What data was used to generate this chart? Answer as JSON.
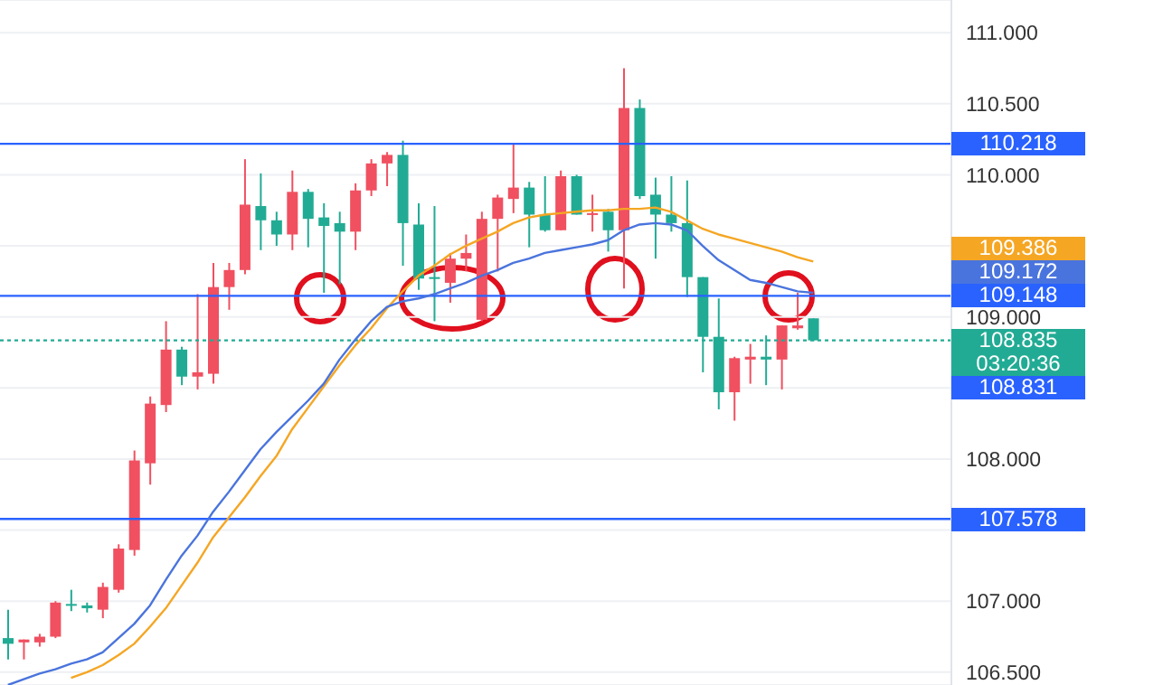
{
  "chart_data": {
    "type": "candlestick",
    "categories": [
      null,
      null,
      null,
      null,
      null,
      null,
      null,
      null,
      null,
      null,
      null,
      null,
      null,
      null,
      null,
      null,
      null,
      null,
      null,
      null,
      null,
      null,
      null,
      null,
      null,
      null,
      null,
      null,
      null,
      null,
      null,
      null,
      null,
      null,
      null,
      null,
      null,
      null,
      null,
      null,
      null,
      null,
      null,
      null,
      null,
      null,
      null,
      null,
      null,
      null,
      null,
      null
    ],
    "ylim": [
      106.41,
      111.23
    ],
    "tick_labels": "y",
    "grid": "y",
    "yticks": [
      {
        "value": 106.5,
        "label": "106.500"
      },
      {
        "value": 107,
        "label": "107.000"
      },
      {
        "value": 107.5,
        "label": null
      },
      {
        "value": 108,
        "label": "108.000"
      },
      {
        "value": 108.5,
        "label": null
      },
      {
        "value": 109,
        "label": "109.000"
      },
      {
        "value": 109.5,
        "label": null
      },
      {
        "value": 110,
        "label": "110.000"
      },
      {
        "value": 110.5,
        "label": "110.500"
      },
      {
        "value": 111,
        "label": "111.000"
      }
    ],
    "series": [
      {
        "type": "line",
        "color": "#f5a623",
        "values": [
          null,
          null,
          null,
          null,
          106.46,
          106.5,
          106.55,
          106.62,
          106.7,
          106.82,
          106.95,
          107.11,
          107.27,
          107.45,
          107.59,
          107.73,
          107.88,
          108.02,
          108.21,
          108.36,
          108.51,
          108.66,
          108.8,
          108.92,
          109.06,
          109.18,
          109.29,
          109.36,
          109.44,
          109.5,
          109.55,
          109.6,
          109.66,
          109.7,
          109.72,
          109.73,
          109.74,
          109.75,
          109.75,
          109.76,
          109.76,
          109.77,
          109.74,
          109.68,
          109.62,
          109.58,
          109.55,
          109.52,
          109.49,
          109.46,
          109.42,
          109.39
        ]
      },
      {
        "type": "line",
        "color": "#4a74dd",
        "values": [
          106.41,
          106.45,
          106.49,
          106.52,
          106.56,
          106.59,
          106.64,
          106.74,
          106.84,
          106.97,
          107.15,
          107.32,
          107.46,
          107.63,
          107.77,
          107.92,
          108.07,
          108.19,
          108.3,
          108.41,
          108.53,
          108.7,
          108.84,
          108.97,
          109.07,
          109.11,
          109.13,
          109.16,
          109.2,
          109.24,
          109.29,
          109.33,
          109.38,
          109.41,
          109.45,
          109.47,
          109.49,
          109.51,
          109.54,
          109.61,
          109.65,
          109.66,
          109.65,
          109.61,
          109.5,
          109.4,
          109.33,
          109.26,
          109.24,
          109.21,
          109.18,
          109.17
        ]
      },
      {
        "colors": [
          "#22ab94",
          "#f05060",
          "#f05060",
          "#f05060",
          "#22ab94",
          "#22ab94",
          "#f05060",
          "#f05060",
          "#f05060",
          "#f05060",
          "#f05060",
          "#22ab94",
          "#f05060",
          "#f05060",
          "#f05060",
          "#f05060",
          "#22ab94",
          "#22ab94",
          "#f05060",
          "#22ab94",
          "#22ab94",
          "#22ab94",
          "#f05060",
          "#f05060",
          "#f05060",
          "#22ab94",
          "#22ab94",
          "#22ab94",
          "#f05060",
          "#f05060",
          "#f05060",
          "#f05060",
          "#f05060",
          "#22ab94",
          "#22ab94",
          "#f05060",
          "#22ab94",
          "#f05060",
          "#22ab94",
          "#f05060",
          "#22ab94",
          "#22ab94",
          "#22ab94",
          "#22ab94",
          "#22ab94",
          "#22ab94",
          "#f05060",
          "#f05060",
          "#22ab94",
          "#f05060",
          "#f05060",
          "#22ab94"
        ],
        "ohlc": [
          [
            106.74,
            106.94,
            106.59,
            106.7
          ],
          [
            106.71,
            106.73,
            106.59,
            106.73
          ],
          [
            106.71,
            106.77,
            106.68,
            106.75
          ],
          [
            106.75,
            107.0,
            106.74,
            106.99
          ],
          [
            106.98,
            107.08,
            106.93,
            106.97
          ],
          [
            106.97,
            106.99,
            106.92,
            106.95
          ],
          [
            106.94,
            107.13,
            106.88,
            107.1
          ],
          [
            107.08,
            107.4,
            107.06,
            107.37
          ],
          [
            107.36,
            108.06,
            107.32,
            107.99
          ],
          [
            107.97,
            108.44,
            107.82,
            108.39
          ],
          [
            108.38,
            108.97,
            108.33,
            108.77
          ],
          [
            108.77,
            108.79,
            108.52,
            108.58
          ],
          [
            108.58,
            109.16,
            108.49,
            108.61
          ],
          [
            108.6,
            109.38,
            108.53,
            109.21
          ],
          [
            109.21,
            109.38,
            109.05,
            109.33
          ],
          [
            109.33,
            110.11,
            109.3,
            109.79
          ],
          [
            109.78,
            110.01,
            109.47,
            109.68
          ],
          [
            109.68,
            109.74,
            109.5,
            109.58
          ],
          [
            109.58,
            110.03,
            109.47,
            109.88
          ],
          [
            109.88,
            109.9,
            109.49,
            109.69
          ],
          [
            109.7,
            109.8,
            109.17,
            109.64
          ],
          [
            109.66,
            109.74,
            109.23,
            109.6
          ],
          [
            109.6,
            109.94,
            109.47,
            109.89
          ],
          [
            109.89,
            110.11,
            109.85,
            110.08
          ],
          [
            110.08,
            110.16,
            109.92,
            110.14
          ],
          [
            110.14,
            110.24,
            109.36,
            109.66
          ],
          [
            109.65,
            109.8,
            109.19,
            109.27
          ],
          [
            109.28,
            109.78,
            108.97,
            109.27
          ],
          [
            109.24,
            109.45,
            109.1,
            109.41
          ],
          [
            109.41,
            109.58,
            109.32,
            109.45
          ],
          [
            108.98,
            109.74,
            108.97,
            109.69
          ],
          [
            109.69,
            109.86,
            109.32,
            109.84
          ],
          [
            109.83,
            110.22,
            109.73,
            109.91
          ],
          [
            109.91,
            109.95,
            109.49,
            109.72
          ],
          [
            109.72,
            109.99,
            109.6,
            109.61
          ],
          [
            109.61,
            110.03,
            109.61,
            109.99
          ],
          [
            109.99,
            110.0,
            109.72,
            109.72
          ],
          [
            109.72,
            109.86,
            109.6,
            109.73
          ],
          [
            109.74,
            109.76,
            109.46,
            109.61
          ],
          [
            109.61,
            110.75,
            109.2,
            110.47
          ],
          [
            110.47,
            110.53,
            109.83,
            109.85
          ],
          [
            109.86,
            109.98,
            109.41,
            109.72
          ],
          [
            109.72,
            109.99,
            109.6,
            109.66
          ],
          [
            109.66,
            109.96,
            109.14,
            109.28
          ],
          [
            109.28,
            109.28,
            108.61,
            108.86
          ],
          [
            108.86,
            109.13,
            108.35,
            108.47
          ],
          [
            108.47,
            108.72,
            108.27,
            108.71
          ],
          [
            108.7,
            108.81,
            108.53,
            108.72
          ],
          [
            108.72,
            108.87,
            108.52,
            108.7
          ],
          [
            108.7,
            108.94,
            108.49,
            108.94
          ],
          [
            108.92,
            109.17,
            108.91,
            108.94
          ],
          [
            108.99,
            108.99,
            108.83,
            108.835
          ]
        ]
      }
    ],
    "ref_lines": [
      {
        "axis": "y",
        "value": 110.218,
        "label": "110.218",
        "color": "#2962ff"
      },
      {
        "axis": "y",
        "value": 109.148,
        "label": "109.148",
        "color": "#2962ff"
      },
      {
        "axis": "y",
        "value": 107.578,
        "label": "107.578",
        "color": "#2962ff"
      },
      {
        "axis": "y",
        "value": 108.835,
        "label": "108.835",
        "color": "#22ab94",
        "line_style": "dotted"
      }
    ],
    "annotations": [
      "109.386",
      "109.172",
      "03:20:36",
      "108.831"
    ]
  }
}
